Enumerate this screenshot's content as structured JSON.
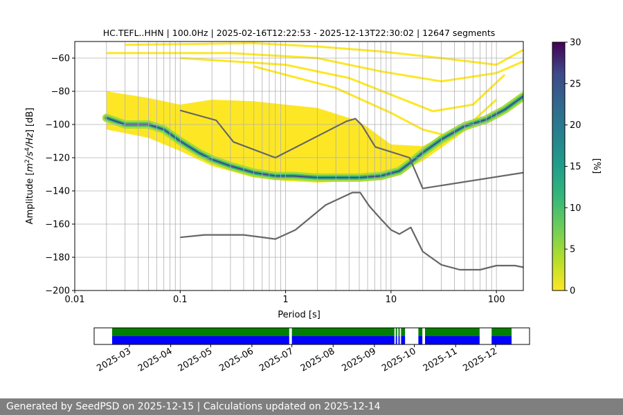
{
  "chart_data": [
    {
      "type": "heatmap",
      "title": "HC.TEFL..HHN | 100.0Hz | 2025-02-16T12:22:53 - 2025-12-13T22:30:02 | 12647 segments",
      "xlabel": "Period [s]",
      "ylabel_parts": [
        "Amplitude [",
        "m",
        "2",
        "/",
        "s",
        "4",
        "/Hz",
        "] [dB]"
      ],
      "x_scale": "log",
      "xlim": [
        0.01,
        180
      ],
      "ylim": [
        -200,
        -50
      ],
      "x_ticks": [
        {
          "value": 0.01,
          "label": "0.01"
        },
        {
          "value": 0.1,
          "label": "0.1"
        },
        {
          "value": 1,
          "label": "1"
        },
        {
          "value": 10,
          "label": "10"
        },
        {
          "value": 100,
          "label": "100"
        }
      ],
      "y_ticks": [
        {
          "value": -60,
          "label": "−60"
        },
        {
          "value": -80,
          "label": "−80"
        },
        {
          "value": -100,
          "label": "−100"
        },
        {
          "value": -120,
          "label": "−120"
        },
        {
          "value": -140,
          "label": "−140"
        },
        {
          "value": -160,
          "label": "−160"
        },
        {
          "value": -180,
          "label": "−180"
        },
        {
          "value": -200,
          "label": "−200"
        }
      ],
      "grid": true,
      "colormap": "viridis_r",
      "colorbar": {
        "label": "[%]",
        "range": [
          0,
          30
        ],
        "ticks": [
          {
            "value": 0,
            "label": "0"
          },
          {
            "value": 5,
            "label": "5"
          },
          {
            "value": 10,
            "label": "10"
          },
          {
            "value": 15,
            "label": "15"
          },
          {
            "value": 20,
            "label": "20"
          },
          {
            "value": 25,
            "label": "25"
          },
          {
            "value": 30,
            "label": "30"
          }
        ]
      },
      "ppsd_mode": {
        "x": [
          0.02,
          0.03,
          0.05,
          0.07,
          0.1,
          0.15,
          0.2,
          0.3,
          0.5,
          0.8,
          1.2,
          2,
          3,
          5,
          8,
          12,
          16,
          20,
          30,
          50,
          80,
          120,
          180
        ],
        "y": [
          -96,
          -100,
          -100,
          -103,
          -110,
          -117,
          -121,
          -125,
          -129,
          -131,
          -131,
          -132,
          -132,
          -132,
          -131,
          -128,
          -122,
          -117,
          -109,
          -101,
          -97,
          -91,
          -83
        ]
      },
      "ppsd_spread": [
        {
          "x": 0.02,
          "low": -103,
          "high": -80
        },
        {
          "x": 0.05,
          "low": -108,
          "high": -84
        },
        {
          "x": 0.1,
          "low": -116,
          "high": -88
        },
        {
          "x": 0.2,
          "low": -125,
          "high": -85
        },
        {
          "x": 0.5,
          "low": -132,
          "high": -86
        },
        {
          "x": 1,
          "low": -134,
          "high": -88
        },
        {
          "x": 2,
          "low": -135,
          "high": -90
        },
        {
          "x": 5,
          "low": -134,
          "high": -98
        },
        {
          "x": 10,
          "low": -131,
          "high": -112
        },
        {
          "x": 20,
          "low": -122,
          "high": -113
        },
        {
          "x": 50,
          "low": -104,
          "high": -100
        },
        {
          "x": 100,
          "low": -96,
          "high": -93
        },
        {
          "x": 180,
          "low": -84,
          "high": -82
        }
      ],
      "ppsd_sparse_lines": [
        {
          "x": [
            0.03,
            0.5,
            2,
            8,
            30,
            100,
            180
          ],
          "y": [
            -52,
            -51,
            -53,
            -56,
            -60,
            -64,
            -55
          ]
        },
        {
          "x": [
            0.02,
            0.3,
            2,
            8,
            30,
            100,
            180
          ],
          "y": [
            -57,
            -57,
            -60,
            -68,
            -74,
            -69,
            -62
          ]
        },
        {
          "x": [
            0.1,
            1,
            4,
            10,
            25,
            60,
            120
          ],
          "y": [
            -60,
            -64,
            -72,
            -82,
            -92,
            -88,
            -70
          ]
        },
        {
          "x": [
            0.5,
            3,
            10,
            20,
            40,
            100
          ],
          "y": [
            -65,
            -78,
            -93,
            -103,
            -108,
            -85
          ]
        }
      ],
      "series": [
        {
          "name": "",
          "color": "#666666",
          "x": [
            0.1,
            0.22,
            0.32,
            0.8,
            3.8,
            4.6,
            5.3,
            7.1,
            15,
            20,
            180
          ],
          "y": [
            -91.5,
            -97.5,
            -110.5,
            -120,
            -98,
            -96.5,
            -100.5,
            -113.5,
            -120,
            -138.5,
            -129
          ]
        },
        {
          "name": "",
          "color": "#666666",
          "x": [
            0.1,
            0.17,
            0.4,
            0.8,
            1.24,
            2.4,
            4.3,
            5.1,
            6.2,
            7.9,
            10,
            12,
            15.4,
            20,
            30,
            45,
            70,
            100,
            150,
            180
          ],
          "y": [
            -168,
            -166.5,
            -166.5,
            -169,
            -163.5,
            -148.5,
            -141,
            -141,
            -149,
            -156.5,
            -163.5,
            -166,
            -162,
            -176.5,
            -184.5,
            -187.5,
            -187.5,
            -185,
            -185,
            -186
          ]
        }
      ]
    },
    {
      "type": "timeline",
      "x_range": [
        "2025-02-16",
        "2025-12-13"
      ],
      "x_ticks": [
        "2025-03",
        "2025-04",
        "2025-05",
        "2025-06",
        "2025-07",
        "2025-08",
        "2025-09",
        "2025-10",
        "2025-11",
        "2025-12"
      ],
      "tick_dates": [
        "2025-03-01",
        "2025-04-01",
        "2025-05-01",
        "2025-06-01",
        "2025-07-01",
        "2025-08-01",
        "2025-09-01",
        "2025-10-01",
        "2025-11-01",
        "2025-12-01"
      ],
      "colors": {
        "top": "#008000",
        "bottom": "#0000ff"
      },
      "data_segments": [
        [
          "2025-02-16",
          "2025-06-29"
        ],
        [
          "2025-07-01",
          "2025-09-16"
        ],
        [
          "2025-09-17",
          "2025-09-18"
        ],
        [
          "2025-09-19",
          "2025-09-20"
        ],
        [
          "2025-09-21",
          "2025-09-24"
        ],
        [
          "2025-10-04",
          "2025-10-07"
        ],
        [
          "2025-10-09",
          "2025-11-19"
        ],
        [
          "2025-11-28",
          "2025-12-13"
        ]
      ]
    }
  ],
  "footer": {
    "text": "Generated by SeedPSD on 2025-12-15 | Calculations updated on 2025-12-14"
  }
}
